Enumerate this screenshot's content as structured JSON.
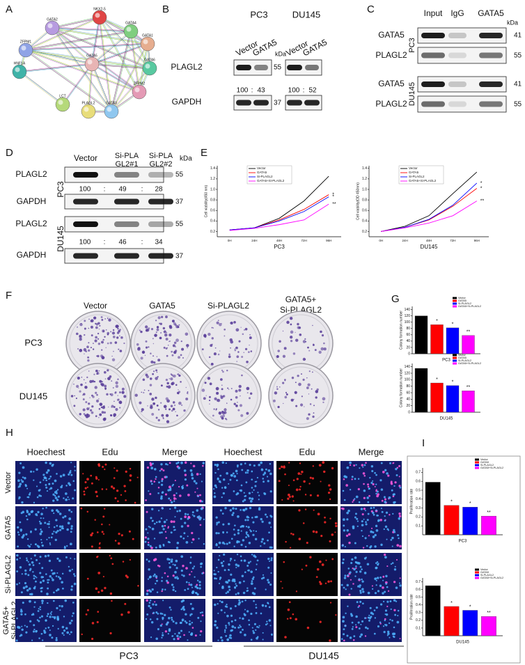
{
  "panel_labels": [
    "A",
    "B",
    "C",
    "D",
    "E",
    "F",
    "G",
    "H",
    "I"
  ],
  "network": {
    "nodes": [
      "GATA2",
      "NKX2-5",
      "GATA4",
      "ZFPM1",
      "GATA1",
      "HNF1A",
      "GATA5",
      "GATA6",
      "ZFPM2",
      "LCT",
      "PLAGL2",
      "GATA3"
    ]
  },
  "blot_b": {
    "cell_lines": [
      "PC3",
      "DU145"
    ],
    "lanes": [
      "Vector",
      "GATA5"
    ],
    "unit": "kDa",
    "rows": [
      {
        "label": "PLAGL2",
        "kda": 55
      },
      {
        "label": "GAPDH",
        "kda": 37
      }
    ],
    "separator": ":",
    "quant": {
      "pc3": [
        100,
        43
      ],
      "du145": [
        100,
        52
      ]
    }
  },
  "blot_c": {
    "lanes": [
      "Input",
      "IgG",
      "GATA5"
    ],
    "unit": "kDa",
    "cell_lines": [
      "PC3",
      "DU145"
    ],
    "rows": [
      {
        "label": "GATA5",
        "kda": 41
      },
      {
        "label": "PLAGL2",
        "kda": 55
      }
    ]
  },
  "blot_d": {
    "lanes": [
      [
        "Vector"
      ],
      [
        "Si-PLA",
        "GL2#1"
      ],
      [
        "Si-PLA",
        "GL2#2"
      ]
    ],
    "unit": "kDa",
    "cell_lines": [
      "PC3",
      "DU145"
    ],
    "rows": [
      {
        "label": "PLAGL2",
        "kda": 55
      },
      {
        "label": "GAPDH",
        "kda": 37
      }
    ],
    "separator": ":",
    "quant": {
      "pc3": [
        100,
        49,
        28
      ],
      "du145": [
        100,
        46,
        34
      ]
    }
  },
  "colony": {
    "columns": [
      [
        "Vector"
      ],
      [
        "GATA5"
      ],
      [
        "Si-PLAGL2"
      ],
      [
        "GATA5+",
        "Si-PLAGL2"
      ]
    ],
    "rows": [
      "PC3",
      "DU145"
    ]
  },
  "edu": {
    "stains": [
      "Hoechest",
      "Edu",
      "Merge"
    ],
    "rows": [
      [
        "Vector"
      ],
      [
        "GATA5"
      ],
      [
        "Si-PLAGL2"
      ],
      [
        "GATA5+",
        "Si-PLAGL2"
      ]
    ],
    "groups": [
      "PC3",
      "DU145"
    ]
  },
  "chart_data": [
    {
      "type": "line",
      "xlabel": "PC3",
      "ylabel": "Cell viability(450 nm)",
      "categories": [
        "0H",
        "24H",
        "48H",
        "72H",
        "96H"
      ],
      "series": [
        {
          "name": "Vector",
          "color": "#000000",
          "values": [
            0.23,
            0.27,
            0.45,
            0.78,
            1.25
          ]
        },
        {
          "name": "GATA5",
          "color": "#ff0000",
          "values": [
            0.23,
            0.27,
            0.42,
            0.62,
            0.9
          ]
        },
        {
          "name": "Si-PLAGL2",
          "color": "#0000ff",
          "values": [
            0.23,
            0.27,
            0.4,
            0.58,
            0.86
          ]
        },
        {
          "name": "GATA5+Si-PLAGL2",
          "color": "#ff00ff",
          "values": [
            0.22,
            0.26,
            0.33,
            0.42,
            0.72
          ]
        }
      ],
      "ylim": [
        0.1,
        1.45
      ],
      "yticks": [
        0.2,
        0.4,
        0.6,
        0.8,
        {
          "value": 1,
          "label": "1.0"
        },
        1.2,
        1.4
      ],
      "annotations": [
        "*",
        "*",
        "**"
      ],
      "legend": "upper left"
    },
    {
      "type": "line",
      "xlabel": "DU145",
      "ylabel": "Cell viability(OD 450nm)",
      "categories": [
        "0H",
        "24H",
        "48H",
        "72H",
        "96H"
      ],
      "series": [
        {
          "name": "Vector",
          "color": "#000000",
          "values": [
            0.2,
            0.3,
            0.5,
            0.92,
            1.33
          ]
        },
        {
          "name": "GATA5",
          "color": "#ff0000",
          "values": [
            0.2,
            0.28,
            0.42,
            0.68,
            1.02
          ]
        },
        {
          "name": "Si-PLAGL2",
          "color": "#0000ff",
          "values": [
            0.2,
            0.28,
            0.43,
            0.7,
            1.12
          ]
        },
        {
          "name": "GATA5+Si-PLAGL2",
          "color": "#ff00ff",
          "values": [
            0.2,
            0.27,
            0.36,
            0.5,
            0.78
          ]
        }
      ],
      "ylim": [
        0.1,
        1.45
      ],
      "yticks": [
        0.2,
        0.4,
        0.6,
        0.8,
        {
          "value": 1,
          "label": "1.0"
        },
        1.2,
        1.4
      ],
      "annotations": [
        "*",
        "*",
        "**"
      ],
      "legend": "upper left"
    },
    {
      "type": "bar",
      "xlabel": "PC3",
      "ylabel": "Colony formation number",
      "series": [
        {
          "name": "Vector",
          "color": "#000000",
          "values": [
            120
          ]
        },
        {
          "name": "GATA5",
          "color": "#ff0000",
          "values": [
            92
          ]
        },
        {
          "name": "Si-PLAGL2",
          "color": "#0000ff",
          "values": [
            82
          ]
        },
        {
          "name": "GATA5+Si-PLAGL2",
          "color": "#ff00ff",
          "values": [
            58
          ]
        }
      ],
      "ylim": [
        0,
        150
      ],
      "yticks": [
        0,
        20,
        40,
        60,
        80,
        100,
        120,
        140
      ],
      "annotations": [
        "*",
        "*",
        "**"
      ],
      "legend": "upper right"
    },
    {
      "type": "bar",
      "xlabel": "DU145",
      "ylabel": "Colony formation number",
      "series": [
        {
          "name": "Vector",
          "color": "#000000",
          "values": [
            135
          ]
        },
        {
          "name": "GATA5",
          "color": "#ff0000",
          "values": [
            90
          ]
        },
        {
          "name": "Si-PLAGL2",
          "color": "#0000ff",
          "values": [
            82
          ]
        },
        {
          "name": "GATA5+Si-PLAGL2",
          "color": "#ff00ff",
          "values": [
            66
          ]
        }
      ],
      "ylim": [
        0,
        150
      ],
      "yticks": [
        0,
        20,
        40,
        60,
        80,
        100,
        120,
        140
      ],
      "annotations": [
        "*",
        "*",
        "**"
      ],
      "legend": "upper right"
    },
    {
      "type": "bar",
      "xlabel": "PC3",
      "ylabel": "Proliferation rate",
      "series": [
        {
          "name": "Vector",
          "color": "#000000",
          "values": [
            0.59
          ]
        },
        {
          "name": "GATA5",
          "color": "#ff0000",
          "values": [
            0.33
          ]
        },
        {
          "name": "Si-PLAGL2",
          "color": "#0000ff",
          "values": [
            0.31
          ]
        },
        {
          "name": "GATA5+Si-PLAGL2",
          "color": "#ff00ff",
          "values": [
            0.21
          ]
        }
      ],
      "ylim": [
        0,
        0.75
      ],
      "yticks": [
        0.1,
        0.2,
        0.3,
        0.4,
        0.5,
        0.6,
        0.7
      ],
      "annotations": [
        "*",
        "*",
        "**"
      ],
      "legend": "upper right"
    },
    {
      "type": "bar",
      "xlabel": "DU145",
      "ylabel": "Proliferation rate",
      "series": [
        {
          "name": "Vector",
          "color": "#000000",
          "values": [
            0.65
          ]
        },
        {
          "name": "GATA5",
          "color": "#ff0000",
          "values": [
            0.38
          ]
        },
        {
          "name": "Si-PLAGL2",
          "color": "#0000ff",
          "values": [
            0.33
          ]
        },
        {
          "name": "GATA5+Si-PLAGL2",
          "color": "#ff00ff",
          "values": [
            0.25
          ]
        }
      ],
      "ylim": [
        0,
        0.75
      ],
      "yticks": [
        0.1,
        0.2,
        0.3,
        0.4,
        0.5,
        0.6,
        0.7
      ],
      "annotations": [
        "*",
        "*",
        "**"
      ],
      "legend": "upper right"
    }
  ]
}
